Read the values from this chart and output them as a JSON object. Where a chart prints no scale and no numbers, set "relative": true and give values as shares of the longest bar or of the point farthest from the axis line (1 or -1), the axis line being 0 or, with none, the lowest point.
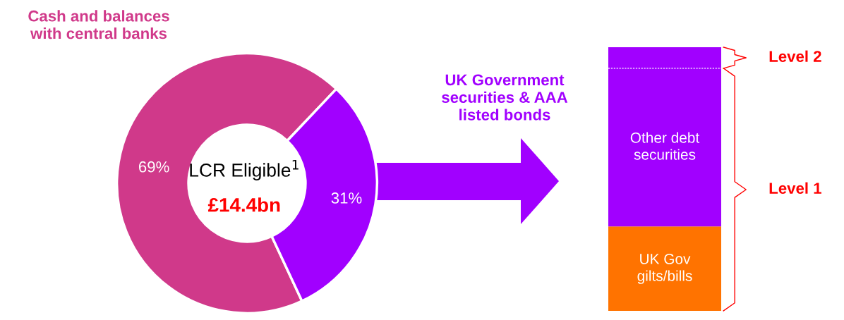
{
  "chart_data": [
    {
      "type": "donut",
      "categories": [
        "Cash and balances with central banks",
        "UK Government securities & AAA listed bonds"
      ],
      "values": [
        69,
        31
      ],
      "colors": [
        "#d0398a",
        "#a100ff"
      ],
      "value_labels": [
        "69%",
        "31%"
      ],
      "annotations": [
        "LCR Eligible$^{1}$",
        "£14.4bn"
      ],
      "legend": false
    },
    {
      "type": "bar",
      "stacked": true,
      "relative": true,
      "categories": [
        null
      ],
      "series": [
        {
          "name": "UK Gov gilts/bills",
          "color": "#ff7300",
          "values": [
            0.32
          ]
        },
        {
          "name": "Other debt securities",
          "color": "#a100ff",
          "values": [
            0.6
          ]
        },
        {
          "color": "#a100ff",
          "values": [
            0.08
          ]
        }
      ],
      "annotations": [
        "Level 2",
        "Level 1"
      ]
    }
  ]
}
